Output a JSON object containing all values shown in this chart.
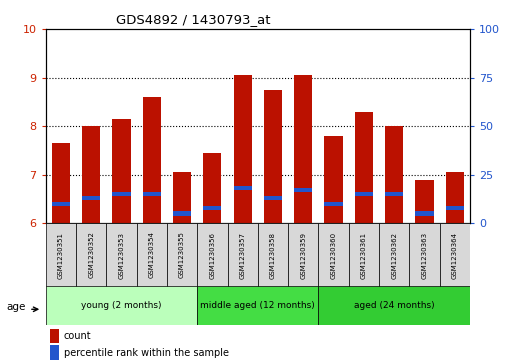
{
  "title": "GDS4892 / 1430793_at",
  "samples": [
    "GSM1230351",
    "GSM1230352",
    "GSM1230353",
    "GSM1230354",
    "GSM1230355",
    "GSM1230356",
    "GSM1230357",
    "GSM1230358",
    "GSM1230359",
    "GSM1230360",
    "GSM1230361",
    "GSM1230362",
    "GSM1230363",
    "GSM1230364"
  ],
  "red_values": [
    7.65,
    8.0,
    8.15,
    8.6,
    7.05,
    7.45,
    9.05,
    8.75,
    9.05,
    7.8,
    8.3,
    8.0,
    6.9,
    7.05
  ],
  "blue_percentiles": [
    10,
    13,
    15,
    15,
    5,
    8,
    18,
    13,
    17,
    10,
    15,
    15,
    5,
    8
  ],
  "ylim_left": [
    6,
    10
  ],
  "ylim_right": [
    0,
    100
  ],
  "yticks_left": [
    6,
    7,
    8,
    9,
    10
  ],
  "yticks_right": [
    0,
    25,
    50,
    75,
    100
  ],
  "bar_bottom": 6.0,
  "red_color": "#bb1100",
  "blue_color": "#2255cc",
  "bar_width": 0.6,
  "groups": [
    {
      "label": "young (2 months)",
      "start": 0,
      "end": 5,
      "color": "#bbffbb"
    },
    {
      "label": "middle aged (12 months)",
      "start": 5,
      "end": 9,
      "color": "#44dd44"
    },
    {
      "label": "aged (24 months)",
      "start": 9,
      "end": 14,
      "color": "#33cc33"
    }
  ],
  "legend_items": [
    {
      "label": "count",
      "color": "#bb1100"
    },
    {
      "label": "percentile rank within the sample",
      "color": "#2255cc"
    }
  ],
  "age_label": "age",
  "tick_color_left": "#cc2200",
  "tick_color_right": "#2255cc",
  "grid_color": "black",
  "bg_color": "#ffffff",
  "plot_bg": "#ffffff",
  "tick_label_bg": "#d8d8d8"
}
